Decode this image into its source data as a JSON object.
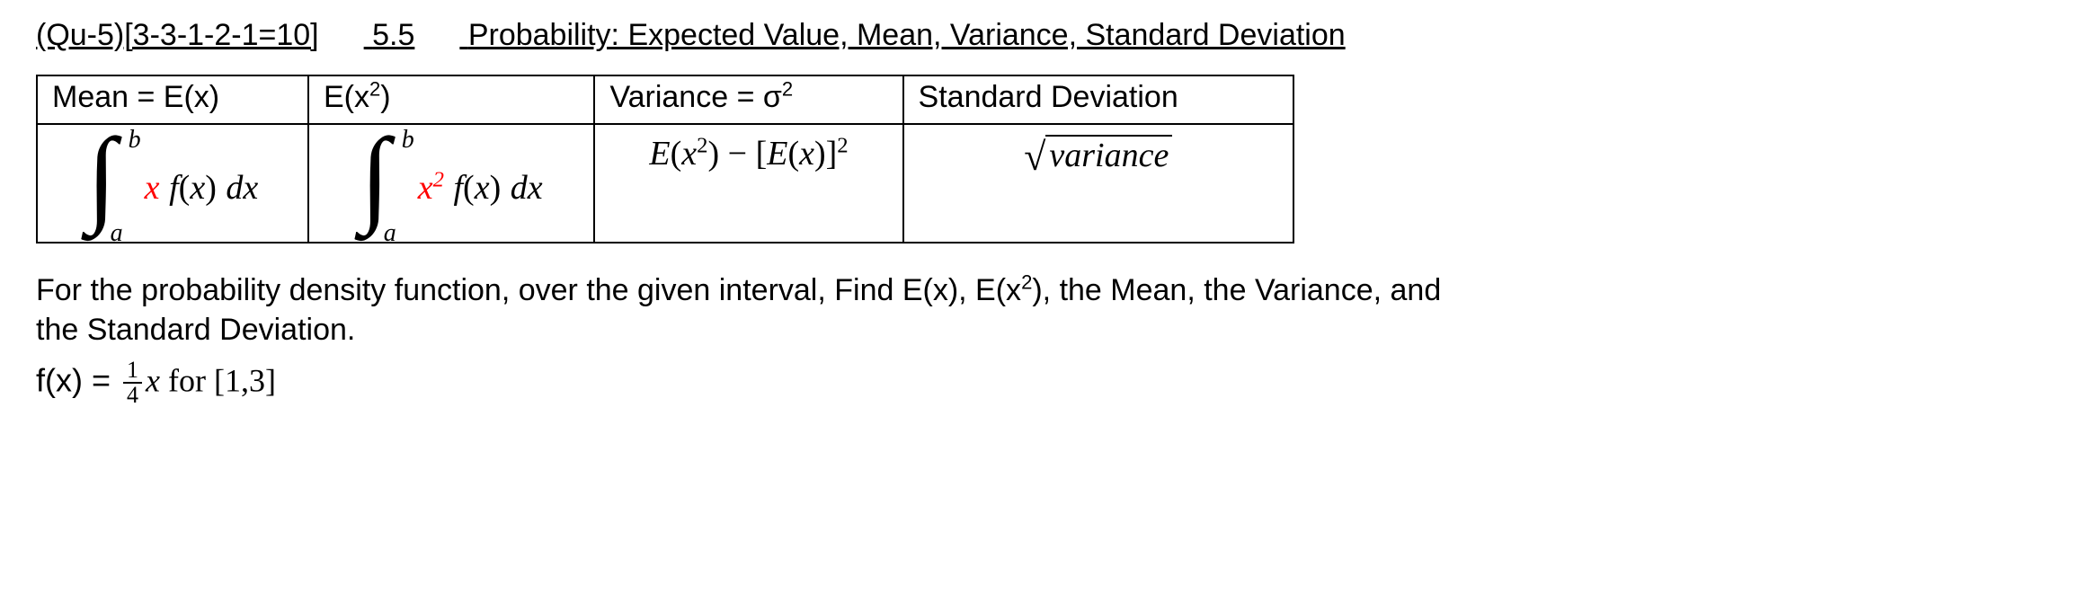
{
  "header": {
    "qcode": "(Qu-5)[3-3-1-2-1=10]",
    "section": "5.5",
    "title": "Probability: Expected Value, Mean, Variance, Standard Deviation"
  },
  "table": {
    "headers": {
      "mean": "Mean = E(x)",
      "ex2_label": "E(x",
      "ex2_sup": "2",
      "ex2_close": ")",
      "variance_label": "Variance = σ",
      "variance_sup": "2",
      "stddev_label": "Standard Deviation"
    },
    "formulas": {
      "integral": {
        "upper": "b",
        "lower": "a",
        "mean_weight": "x",
        "ex2_weight": "x",
        "ex2_weight_sup": "2",
        "space": " ",
        "fx": "f",
        "open": "(",
        "xvar": "x",
        "close": ")",
        "dx_d": "d",
        "dx_x": "x"
      },
      "variance": {
        "E1": "E",
        "open1": "(",
        "x1": "x",
        "sup1": "2",
        "close1": ")",
        "minus": " − ",
        "open2": "[",
        "E2": "E",
        "open3": "(",
        "x2": "x",
        "close3": ")",
        "close2": "]",
        "sup2": "2"
      },
      "stddev": {
        "radicand": "variance"
      }
    }
  },
  "prompt": {
    "line1a": "For the probability density function, over the given interval, Find E(x), E(x",
    "line1sup": "2",
    "line1b": "), the Mean, the Variance, and",
    "line2": "the Standard Deviation."
  },
  "fx": {
    "lhs": "f(x) = ",
    "num": "1",
    "den": "4",
    "xvar": "x",
    "for_text": "  for ",
    "interval": "[1,3]"
  },
  "colors": {
    "text": "#000000",
    "accent": "#ff0000",
    "border": "#000000",
    "background": "#ffffff"
  }
}
